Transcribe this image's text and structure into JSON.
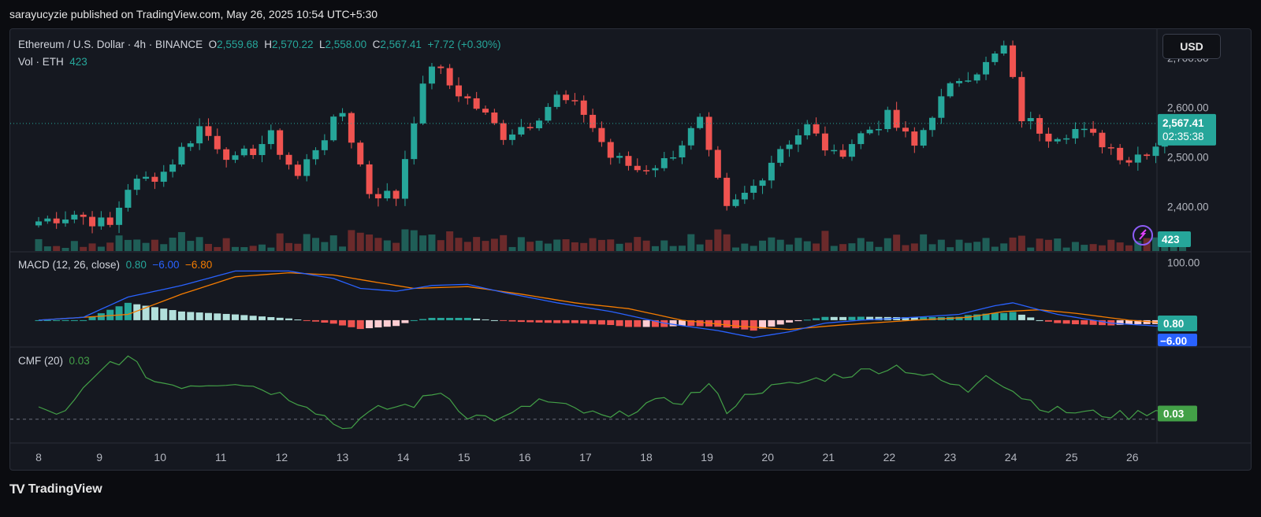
{
  "header": {
    "published_line": "sarayucyzie published on TradingView.com, May 26, 2025 10:54 UTC+5:30"
  },
  "legend": {
    "symbol": "Ethereum / U.S. Dollar · 4h · BINANCE",
    "open_label": "O",
    "open": "2,559.68",
    "high_label": "H",
    "high": "2,570.22",
    "low_label": "L",
    "low": "2,558.00",
    "close_label": "C",
    "close": "2,567.41",
    "change": "+7.72 (+0.30%)",
    "vol_label": "Vol · ETH",
    "vol": "423"
  },
  "currency_button": "USD",
  "macd_legend": {
    "label": "MACD (12, 26, close)",
    "hist": "0.80",
    "macd": "−6.00",
    "signal": "−6.80"
  },
  "cmf_legend": {
    "label": "CMF (20)",
    "value": "0.03"
  },
  "price_badges": {
    "last": "2,567.41",
    "countdown": "02:35:38",
    "volume": "423",
    "macd_hist": "0.80",
    "macd": "−6.00",
    "cmf": "0.03"
  },
  "footer": {
    "brand": "TradingView"
  },
  "colors": {
    "up": "#26a69a",
    "down": "#ef5350",
    "macd": "#2962ff",
    "signal": "#f57c00",
    "cmf": "#43a047"
  },
  "chart_data": [
    {
      "type": "candlestick",
      "title": "Ethereum / U.S. Dollar · 4h · BINANCE",
      "x_ticks": [
        "8",
        "9",
        "10",
        "11",
        "12",
        "13",
        "14",
        "15",
        "16",
        "17",
        "18",
        "19",
        "20",
        "21",
        "22",
        "23",
        "24",
        "25",
        "26"
      ],
      "y_ticks": [
        "2,400.00",
        "2,500.00",
        "2,600.00",
        "2,700.00"
      ],
      "ylim": [
        2310,
        2745
      ],
      "close_anchors": [
        [
          0,
          2370
        ],
        [
          4,
          2385
        ],
        [
          8,
          2360
        ],
        [
          10,
          2440
        ],
        [
          14,
          2470
        ],
        [
          18,
          2560
        ],
        [
          22,
          2490
        ],
        [
          26,
          2540
        ],
        [
          29,
          2460
        ],
        [
          31,
          2520
        ],
        [
          34,
          2590
        ],
        [
          37,
          2430
        ],
        [
          40,
          2420
        ],
        [
          42,
          2580
        ],
        [
          44,
          2690
        ],
        [
          46,
          2645
        ],
        [
          49,
          2600
        ],
        [
          52,
          2545
        ],
        [
          55,
          2570
        ],
        [
          58,
          2620
        ],
        [
          61,
          2590
        ],
        [
          64,
          2500
        ],
        [
          67,
          2475
        ],
        [
          70,
          2490
        ],
        [
          74,
          2570
        ],
        [
          75,
          2500
        ],
        [
          77,
          2390
        ],
        [
          80,
          2440
        ],
        [
          83,
          2520
        ],
        [
          86,
          2560
        ],
        [
          89,
          2500
        ],
        [
          92,
          2545
        ],
        [
          95,
          2580
        ],
        [
          98,
          2520
        ],
        [
          100,
          2590
        ],
        [
          103,
          2660
        ],
        [
          106,
          2685
        ],
        [
          108,
          2720
        ],
        [
          110,
          2580
        ],
        [
          113,
          2545
        ],
        [
          116,
          2555
        ],
        [
          119,
          2530
        ],
        [
          122,
          2495
        ],
        [
          125,
          2525
        ],
        [
          128,
          2567.41
        ]
      ],
      "volume_label": "Vol · ETH",
      "last_volume": 423
    },
    {
      "type": "line",
      "title": "MACD (12, 26, close)",
      "y_ticks": [
        "100.00"
      ],
      "series": [
        {
          "name": "MACD",
          "anchors": [
            [
              0,
              0
            ],
            [
              5,
              5
            ],
            [
              10,
              40
            ],
            [
              16,
              60
            ],
            [
              22,
              85
            ],
            [
              28,
              85
            ],
            [
              33,
              72
            ],
            [
              36,
              55
            ],
            [
              40,
              50
            ],
            [
              44,
              60
            ],
            [
              48,
              62
            ],
            [
              52,
              48
            ],
            [
              58,
              30
            ],
            [
              64,
              15
            ],
            [
              70,
              -5
            ],
            [
              76,
              -18
            ],
            [
              80,
              -30
            ],
            [
              84,
              -20
            ],
            [
              88,
              -5
            ],
            [
              92,
              0
            ],
            [
              98,
              5
            ],
            [
              103,
              10
            ],
            [
              107,
              25
            ],
            [
              109,
              30
            ],
            [
              114,
              10
            ],
            [
              120,
              -5
            ],
            [
              125,
              -10
            ],
            [
              128,
              -6
            ]
          ]
        },
        {
          "name": "Signal",
          "anchors": [
            [
              0,
              0
            ],
            [
              10,
              10
            ],
            [
              16,
              45
            ],
            [
              22,
              75
            ],
            [
              28,
              82
            ],
            [
              33,
              78
            ],
            [
              38,
              65
            ],
            [
              42,
              55
            ],
            [
              48,
              58
            ],
            [
              54,
              45
            ],
            [
              60,
              30
            ],
            [
              66,
              20
            ],
            [
              72,
              0
            ],
            [
              78,
              -10
            ],
            [
              84,
              -16
            ],
            [
              90,
              -8
            ],
            [
              98,
              0
            ],
            [
              104,
              5
            ],
            [
              108,
              15
            ],
            [
              112,
              18
            ],
            [
              116,
              12
            ],
            [
              122,
              0
            ],
            [
              128,
              -6.8
            ]
          ]
        }
      ],
      "histogram_last": 0.8
    },
    {
      "type": "line",
      "title": "CMF (20)",
      "series": [
        {
          "name": "CMF",
          "anchors": [
            [
              0,
              0.05
            ],
            [
              3,
              0.03
            ],
            [
              5,
              0.15
            ],
            [
              8,
              0.3
            ],
            [
              10,
              0.32
            ],
            [
              13,
              0.2
            ],
            [
              16,
              0.18
            ],
            [
              22,
              0.2
            ],
            [
              26,
              0.15
            ],
            [
              30,
              0.08
            ],
            [
              34,
              -0.05
            ],
            [
              38,
              0.05
            ],
            [
              42,
              0.08
            ],
            [
              45,
              0.15
            ],
            [
              48,
              0.02
            ],
            [
              52,
              0.0
            ],
            [
              56,
              0.1
            ],
            [
              60,
              0.05
            ],
            [
              64,
              0.0
            ],
            [
              68,
              0.08
            ],
            [
              72,
              0.1
            ],
            [
              75,
              0.18
            ],
            [
              77,
              0.05
            ],
            [
              80,
              0.15
            ],
            [
              84,
              0.18
            ],
            [
              88,
              0.22
            ],
            [
              92,
              0.25
            ],
            [
              96,
              0.28
            ],
            [
              100,
              0.22
            ],
            [
              104,
              0.15
            ],
            [
              106,
              0.25
            ],
            [
              110,
              0.12
            ],
            [
              113,
              0.05
            ],
            [
              118,
              0.03
            ],
            [
              122,
              0.02
            ],
            [
              126,
              0.06
            ],
            [
              128,
              0.03
            ]
          ]
        }
      ],
      "last_value": 0.03
    }
  ]
}
